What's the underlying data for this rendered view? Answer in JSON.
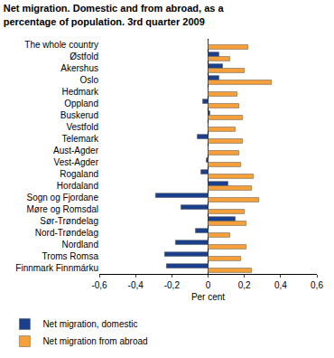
{
  "chart_data": {
    "type": "bar",
    "orientation": "horizontal",
    "title": "Net migration. Domestic and from abroad, as a percentage of population. 3rd quarter 2009",
    "x_label": "Per cent",
    "categories": [
      "The whole country",
      "Østfold",
      "Akershus",
      "Oslo",
      "Hedmark",
      "Oppland",
      "Buskerud",
      "Vestfold",
      "Telemark",
      "Aust-Agder",
      "Vest-Agder",
      "Rogaland",
      "Hordaland",
      "Sogn og Fjordane",
      "Møre og Romsdal",
      "Sør-Trøndelag",
      "Nord-Trøndelag",
      "Nordland",
      "Troms Romsa",
      "Finnmark Finnmárku"
    ],
    "series": [
      {
        "name": "Net migration, domestic",
        "color": "#1a3f8c",
        "values": [
          0,
          0.06,
          0.08,
          0.06,
          0,
          -0.03,
          0.01,
          0,
          -0.06,
          0,
          -0.01,
          -0.04,
          0.11,
          -0.29,
          -0.15,
          0.15,
          -0.07,
          -0.18,
          -0.24,
          -0.23
        ]
      },
      {
        "name": "Net migration from abroad",
        "color": "#f5a03a",
        "values": [
          0.22,
          0.12,
          0.2,
          0.35,
          0.16,
          0.17,
          0.19,
          0.15,
          0.19,
          0.17,
          0.18,
          0.25,
          0.24,
          0.28,
          0.2,
          0.21,
          0.12,
          0.21,
          0.18,
          0.24
        ]
      }
    ],
    "xlim": [
      -0.6,
      0.6
    ],
    "xticks": [
      {
        "value": -0.6,
        "label": "-0,6"
      },
      {
        "value": -0.4,
        "label": "-0,4"
      },
      {
        "value": -0.2,
        "label": "-0,2"
      },
      0,
      {
        "value": 0.2,
        "label": "0,2"
      },
      {
        "value": 0.4,
        "label": "0,4"
      },
      {
        "value": 0.6,
        "label": "0,6"
      }
    ],
    "grid": false,
    "legend": "bottom"
  }
}
